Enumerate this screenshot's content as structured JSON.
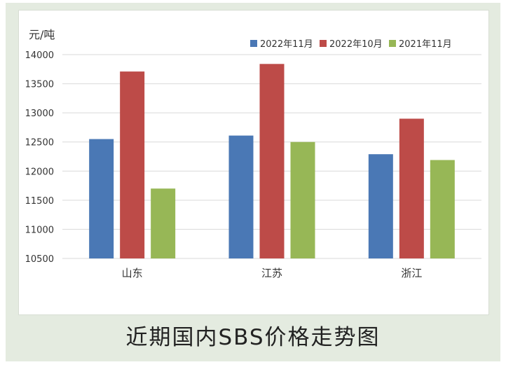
{
  "caption": "近期国内SBS价格走势图",
  "chart_data": {
    "type": "bar",
    "ylabel": "元/吨",
    "ylim": [
      10500,
      14000
    ],
    "yticks": [
      10500,
      11000,
      11500,
      12000,
      12500,
      13000,
      13500,
      14000
    ],
    "categories": [
      "山东",
      "江苏",
      "浙江"
    ],
    "legend_position": "top-right",
    "grid": true,
    "series": [
      {
        "name": "2022年11月",
        "color": "#4a78b5",
        "values": [
          12550,
          12610,
          12290
        ]
      },
      {
        "name": "2022年10月",
        "color": "#bd4b48",
        "values": [
          13710,
          13840,
          12900
        ]
      },
      {
        "name": "2021年11月",
        "color": "#97b756",
        "values": [
          11700,
          12500,
          12190
        ]
      }
    ]
  }
}
